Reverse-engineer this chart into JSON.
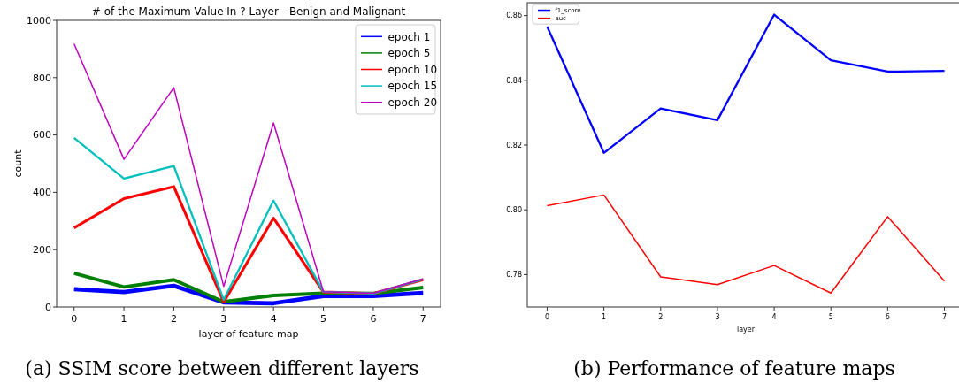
{
  "chart_data": [
    {
      "type": "line",
      "title": "# of the Maximum Value In ? Layer - Benign and Malignant",
      "xlabel": "layer of feature map",
      "ylabel": "count",
      "x": [
        0,
        1,
        2,
        3,
        4,
        5,
        6,
        7
      ],
      "xlim": [
        -0.35,
        7.35
      ],
      "xticks": [
        0,
        1,
        2,
        3,
        4,
        5,
        6,
        7
      ],
      "ylim": [
        0,
        1000
      ],
      "yticks": [
        0,
        200,
        400,
        600,
        800,
        1000
      ],
      "legend": "top right",
      "annotations": [
        "(a) SSIM score between different layers"
      ],
      "series": [
        {
          "name": "epoch 1",
          "color": "#0000ff",
          "values": [
            62,
            52,
            74,
            16,
            13,
            38,
            38,
            49
          ]
        },
        {
          "name": "epoch 5",
          "color": "#008000",
          "values": [
            118,
            70,
            95,
            18,
            40,
            48,
            47,
            68
          ]
        },
        {
          "name": "epoch 10",
          "color": "#ff0000",
          "values": [
            276,
            378,
            420,
            17,
            310,
            52,
            47,
            95
          ]
        },
        {
          "name": "epoch 15",
          "color": "#00bfbf",
          "values": [
            590,
            448,
            492,
            25,
            371,
            53,
            47,
            97
          ]
        },
        {
          "name": "epoch 20",
          "color": "#bf00bf",
          "values": [
            918,
            515,
            765,
            72,
            642,
            53,
            48,
            98
          ]
        }
      ]
    },
    {
      "type": "line",
      "xlabel": "layer",
      "x": [
        0,
        1,
        2,
        3,
        4,
        5,
        6,
        7
      ],
      "xlim": [
        -0.35,
        7.35
      ],
      "xticks": [
        0,
        1,
        2,
        3,
        4,
        5,
        6,
        7
      ],
      "ylim": [
        0.77,
        0.864
      ],
      "yticks": [
        {
          "value": 0.78,
          "label": "0.78"
        },
        {
          "value": 0.8,
          "label": "0.80"
        },
        {
          "value": 0.82,
          "label": "0.82"
        },
        {
          "value": 0.84,
          "label": "0.84"
        },
        {
          "value": 0.86,
          "label": "0.86"
        }
      ],
      "legend": "top left",
      "annotations": [
        "(b) Performance of feature maps"
      ],
      "series": [
        {
          "name": "f1_score",
          "color": "#0000ff",
          "values": [
            0.8566,
            0.8176,
            0.8313,
            0.8277,
            0.8603,
            0.8462,
            0.8427,
            0.8429
          ]
        },
        {
          "name": "auc",
          "color": "#ff0000",
          "values": [
            0.8013,
            0.8046,
            0.7793,
            0.7769,
            0.7828,
            0.7743,
            0.7979,
            0.778
          ]
        }
      ]
    }
  ]
}
